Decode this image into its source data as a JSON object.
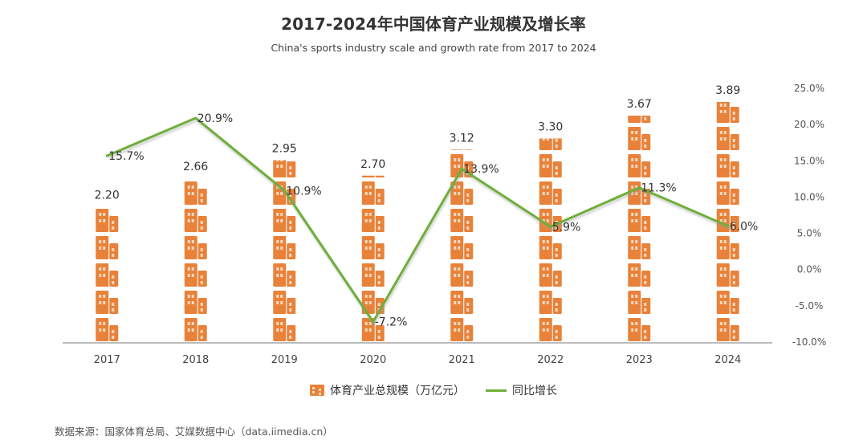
{
  "title": "2017-2024年中国体育产业规模及增长率",
  "subtitle": "China's sports industry scale and growth rate from 2017 to 2024",
  "source": "数据来源：国家体育总局、艾媒数据中心（data.iimedia.cn）",
  "colors": {
    "bar": "#E8823A",
    "bar_dark": "#B85A1C",
    "window": "#F6D8BE",
    "line": "#6FAE3A",
    "axis": "#777777"
  },
  "legend": {
    "bar_label": "体育产业总规模（万亿元）",
    "line_label": "同比增长",
    "bar_icon": "building-icon"
  },
  "chart_data": {
    "type": "bar+line",
    "title": "2017-2024年中国体育产业规模及增长率",
    "categories": [
      "2017",
      "2018",
      "2019",
      "2020",
      "2021",
      "2022",
      "2023",
      "2024"
    ],
    "series": [
      {
        "name": "体育产业总规模（万亿元）",
        "type": "bar",
        "axis": "left",
        "values": [
          2.2,
          2.66,
          2.95,
          2.7,
          3.12,
          3.3,
          3.67,
          3.89
        ],
        "labels": [
          "2.20",
          "2.66",
          "2.95",
          "2.70",
          "3.12",
          "3.30",
          "3.67",
          "3.89"
        ]
      },
      {
        "name": "同比增长",
        "type": "line",
        "axis": "right",
        "values": [
          15.7,
          20.9,
          10.9,
          -7.2,
          13.9,
          5.9,
          11.3,
          6.0
        ],
        "labels": [
          "15.7%",
          "20.9%",
          "10.9%",
          "-7.2%",
          "13.9%",
          "5.9%",
          "11.3%",
          "6.0%"
        ]
      }
    ],
    "y_left": {
      "range": [
        0,
        4.0
      ],
      "visible": false
    },
    "y_right": {
      "range": [
        -10,
        25
      ],
      "ticks": [
        "25.0%",
        "20.0%",
        "15.0%",
        "10.0%",
        "5.0%",
        "0.0%",
        "-5.0%",
        "-10.0%"
      ]
    },
    "legend_position": "bottom",
    "grid": false
  }
}
